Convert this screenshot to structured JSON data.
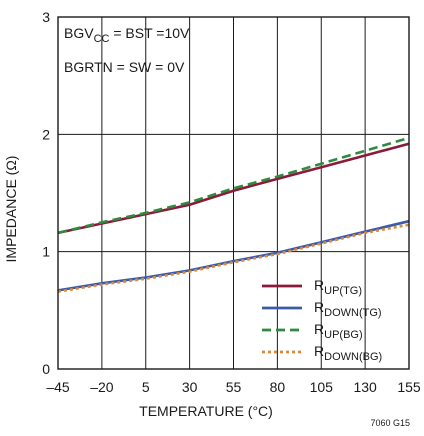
{
  "chart_data": {
    "type": "line",
    "xlabel": "TEMPERATURE (°C)",
    "ylabel": "IMPEDANCE (Ω)",
    "xlim": [
      -45,
      155
    ],
    "ylim": [
      0,
      3
    ],
    "x_ticks": [
      "–45",
      "–20",
      "5",
      "30",
      "55",
      "80",
      "105",
      "130",
      "155"
    ],
    "y_ticks": [
      "0",
      "1",
      "2",
      "3"
    ],
    "grid": true,
    "conditions": [
      {
        "main": "BGV",
        "sub": "CC",
        "rest": " = BST =10V"
      },
      {
        "main": "BGRTN = SW = 0V",
        "sub": "",
        "rest": ""
      }
    ],
    "legend_position": "bottom-right",
    "series": [
      {
        "label_main": "R",
        "label_sub": "UP(TG)",
        "color": "#8b1a3a",
        "dash": "solid",
        "x": [
          -45,
          -20,
          5,
          30,
          55,
          80,
          105,
          130,
          155
        ],
        "y": [
          1.16,
          1.24,
          1.32,
          1.4,
          1.52,
          1.62,
          1.72,
          1.82,
          1.92
        ]
      },
      {
        "label_main": "R",
        "label_sub": "DOWN(TG)",
        "color": "#3d5aa8",
        "dash": "solid",
        "x": [
          -45,
          -20,
          5,
          30,
          55,
          80,
          105,
          130,
          155
        ],
        "y": [
          0.67,
          0.73,
          0.78,
          0.84,
          0.92,
          0.99,
          1.08,
          1.17,
          1.26
        ]
      },
      {
        "label_main": "R",
        "label_sub": "UP(BG)",
        "color": "#2e8b3e",
        "dash": "dashed",
        "x": [
          -45,
          -20,
          5,
          30,
          55,
          80,
          105,
          130,
          155
        ],
        "y": [
          1.16,
          1.25,
          1.33,
          1.42,
          1.54,
          1.64,
          1.75,
          1.86,
          1.97
        ]
      },
      {
        "label_main": "R",
        "label_sub": "DOWN(BG)",
        "color": "#d88a3c",
        "dash": "dotted",
        "x": [
          -45,
          -20,
          5,
          30,
          55,
          80,
          105,
          130,
          155
        ],
        "y": [
          0.66,
          0.72,
          0.77,
          0.83,
          0.91,
          0.98,
          1.07,
          1.16,
          1.23
        ]
      }
    ]
  },
  "figure_id": "7060 G15"
}
